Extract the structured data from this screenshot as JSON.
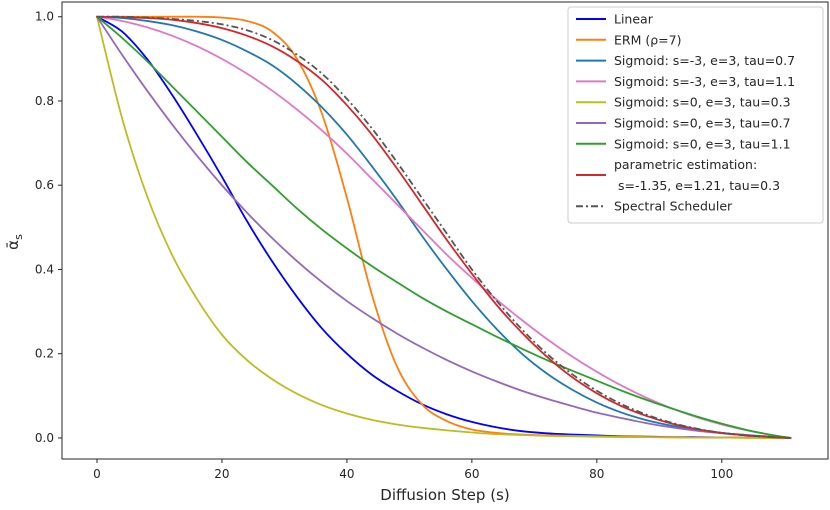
{
  "chart_data": {
    "type": "line",
    "title": "",
    "xlabel": "Diffusion Step (s)",
    "ylabel": "ᾱ",
    "ylabel_sub": "s",
    "xlim": [
      -5.6,
      117
    ],
    "ylim": [
      -0.05,
      1.035
    ],
    "xticks": [
      0,
      20,
      40,
      60,
      80,
      100
    ],
    "yticks": [
      0.0,
      0.2,
      0.4,
      0.6,
      0.8,
      1.0
    ],
    "grid": false,
    "legend_position": "top-right",
    "x": [
      0,
      4,
      8,
      12,
      16,
      20,
      24,
      28,
      32,
      36,
      40,
      44,
      48,
      52,
      56,
      60,
      64,
      68,
      72,
      76,
      80,
      84,
      88,
      92,
      96,
      100,
      104,
      108,
      111
    ],
    "series": [
      {
        "name": "Linear",
        "color": "#0000ff",
        "dash": "",
        "label_lines": [
          "Linear"
        ],
        "values": [
          1.0,
          0.965,
          0.9,
          0.815,
          0.72,
          0.62,
          0.515,
          0.42,
          0.335,
          0.26,
          0.2,
          0.15,
          0.112,
          0.08,
          0.056,
          0.038,
          0.025,
          0.016,
          0.011,
          0.008,
          0.006,
          0.004,
          0.003,
          0.002,
          0.002,
          0.001,
          0.001,
          0.001,
          0.0
        ]
      },
      {
        "name": "ERM (ρ=7)",
        "color": "#ff7f0e",
        "dash": "",
        "label_lines": [
          "ERM (ρ=7)"
        ],
        "values": [
          1.0,
          1.0,
          1.0,
          1.0,
          1.0,
          0.998,
          0.99,
          0.965,
          0.9,
          0.77,
          0.57,
          0.34,
          0.17,
          0.08,
          0.04,
          0.02,
          0.012,
          0.008,
          0.006,
          0.005,
          0.004,
          0.003,
          0.002,
          0.002,
          0.001,
          0.001,
          0.001,
          0.0,
          0.0
        ]
      },
      {
        "name": "Sigmoid: s=-3, e=3, tau=0.7",
        "color": "#1f77b4",
        "dash": "",
        "label_lines": [
          "Sigmoid: s=-3, e=3, tau=0.7"
        ],
        "values": [
          1.0,
          0.997,
          0.99,
          0.98,
          0.965,
          0.945,
          0.918,
          0.885,
          0.84,
          0.785,
          0.72,
          0.645,
          0.565,
          0.48,
          0.4,
          0.325,
          0.258,
          0.2,
          0.153,
          0.115,
          0.084,
          0.06,
          0.042,
          0.029,
          0.019,
          0.012,
          0.007,
          0.003,
          0.0
        ]
      },
      {
        "name": "Sigmoid: s=-3, e=3, tau=1.1",
        "color": "#e377c2",
        "dash": "",
        "label_lines": [
          "Sigmoid: s=-3, e=3, tau=1.1"
        ],
        "values": [
          1.0,
          0.99,
          0.975,
          0.955,
          0.93,
          0.9,
          0.865,
          0.825,
          0.78,
          0.73,
          0.675,
          0.615,
          0.555,
          0.495,
          0.435,
          0.38,
          0.328,
          0.28,
          0.235,
          0.194,
          0.157,
          0.124,
          0.095,
          0.07,
          0.049,
          0.032,
          0.018,
          0.007,
          0.0
        ]
      },
      {
        "name": "Sigmoid: s=0, e=3, tau=0.3",
        "color": "#bcbd22",
        "dash": "",
        "label_lines": [
          "Sigmoid: s=0, e=3, tau=0.3"
        ],
        "values": [
          1.0,
          0.76,
          0.575,
          0.435,
          0.33,
          0.245,
          0.185,
          0.14,
          0.105,
          0.078,
          0.058,
          0.043,
          0.032,
          0.024,
          0.018,
          0.013,
          0.009,
          0.007,
          0.005,
          0.004,
          0.003,
          0.002,
          0.002,
          0.001,
          0.001,
          0.001,
          0.0,
          0.0,
          0.0
        ]
      },
      {
        "name": "Sigmoid: s=0, e=3, tau=0.7",
        "color": "#9467bd",
        "dash": "",
        "label_lines": [
          "Sigmoid: s=0, e=3, tau=0.7"
        ],
        "values": [
          1.0,
          0.91,
          0.825,
          0.745,
          0.67,
          0.6,
          0.535,
          0.475,
          0.42,
          0.37,
          0.325,
          0.285,
          0.248,
          0.215,
          0.185,
          0.158,
          0.134,
          0.112,
          0.093,
          0.076,
          0.06,
          0.047,
          0.035,
          0.025,
          0.017,
          0.011,
          0.006,
          0.002,
          0.0
        ]
      },
      {
        "name": "Sigmoid: s=0, e=3, tau=1.1",
        "color": "#2ca02c",
        "dash": "",
        "label_lines": [
          "Sigmoid: s=0, e=3, tau=1.1"
        ],
        "values": [
          1.0,
          0.95,
          0.895,
          0.835,
          0.775,
          0.715,
          0.655,
          0.6,
          0.545,
          0.495,
          0.45,
          0.408,
          0.37,
          0.333,
          0.3,
          0.27,
          0.24,
          0.212,
          0.185,
          0.16,
          0.136,
          0.112,
          0.09,
          0.07,
          0.051,
          0.034,
          0.019,
          0.007,
          0.0
        ]
      },
      {
        "name": "parametric estimation: s=-1.35, e=1.21, tau=0.3",
        "color": "#d62728",
        "dash": "",
        "label_lines": [
          "parametric estimation:",
          " s=-1.35, e=1.21, tau=0.3"
        ],
        "values": [
          1.0,
          0.999,
          0.997,
          0.993,
          0.985,
          0.973,
          0.955,
          0.93,
          0.895,
          0.85,
          0.79,
          0.72,
          0.64,
          0.555,
          0.47,
          0.39,
          0.315,
          0.25,
          0.193,
          0.145,
          0.106,
          0.075,
          0.052,
          0.034,
          0.021,
          0.012,
          0.006,
          0.002,
          0.0
        ]
      },
      {
        "name": "Spectral Scheduler",
        "color": "#555555",
        "dash": "7,3,2,3",
        "label_lines": [
          "Spectral Scheduler"
        ],
        "values": [
          1.0,
          1.0,
          0.998,
          0.995,
          0.99,
          0.982,
          0.968,
          0.945,
          0.91,
          0.865,
          0.805,
          0.735,
          0.655,
          0.57,
          0.485,
          0.4,
          0.325,
          0.258,
          0.2,
          0.152,
          0.112,
          0.08,
          0.055,
          0.036,
          0.022,
          0.012,
          0.006,
          0.002,
          0.0
        ]
      }
    ]
  }
}
